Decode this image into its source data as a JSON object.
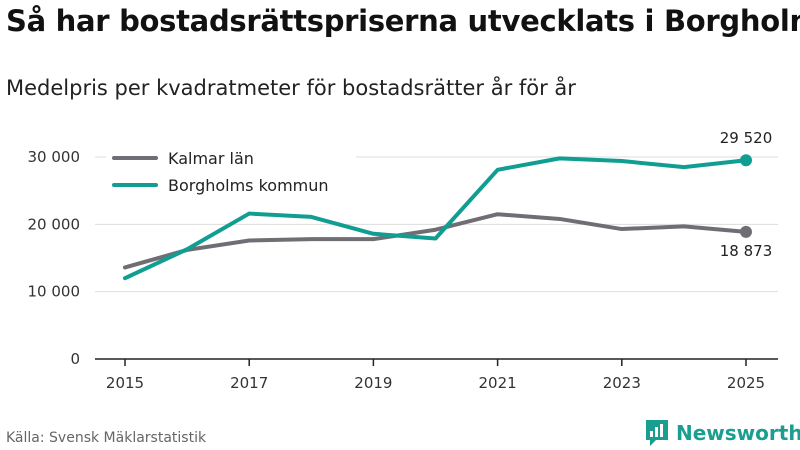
{
  "chart_data": {
    "type": "line",
    "title": "Så har bostadsrättspriserna utvecklats i Borgholm",
    "subtitle": "Medelpris per kvadratmeter för bostadsrätter år för år",
    "xlabel": "",
    "ylabel": "",
    "x": [
      2015,
      2016,
      2017,
      2018,
      2019,
      2020,
      2021,
      2022,
      2023,
      2024,
      2025
    ],
    "x_ticks": [
      2015,
      2017,
      2019,
      2021,
      2023,
      2025
    ],
    "x_tick_labels": [
      "2015",
      "2017",
      "2019",
      "2021",
      "2023",
      "2025"
    ],
    "xlim": [
      2014.5,
      2025.5
    ],
    "ylim": [
      0,
      30000
    ],
    "y_ticks": [
      0,
      10000,
      20000,
      30000
    ],
    "y_tick_labels": [
      "0",
      "10 000",
      "20 000",
      "30 000"
    ],
    "grid": true,
    "legend": "top-left",
    "series": [
      {
        "name": "Kalmar län",
        "color": "#6f6e74",
        "values": [
          13600,
          16200,
          17600,
          17800,
          17800,
          19200,
          21500,
          20800,
          19300,
          19700,
          18873
        ],
        "end_label": "18 873"
      },
      {
        "name": "Borgholms kommun",
        "color": "#109e92",
        "values": [
          12000,
          16300,
          21600,
          21100,
          18600,
          17900,
          28100,
          29800,
          29400,
          28500,
          29520
        ],
        "end_label": "29 520"
      }
    ]
  },
  "footer": {
    "source": "Källa: Svensk Mäklarstatistik",
    "brand": "Newsworthy",
    "brand_color": "#1a9e8f"
  }
}
